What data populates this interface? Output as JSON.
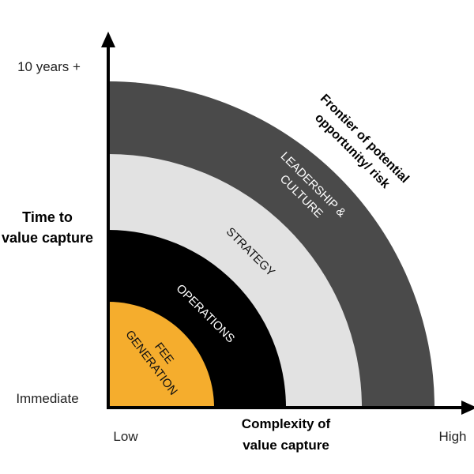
{
  "y_axis": {
    "top_label": "10 years +",
    "bottom_label": "Immediate",
    "title_line1": "Time to",
    "title_line2": "value capture"
  },
  "x_axis": {
    "left_label": "Low",
    "right_label": "High",
    "title_line1": "Complexity of",
    "title_line2": "value capture"
  },
  "rings": [
    {
      "label_line1": "FEE",
      "label_line2": "GENERATION",
      "color": "#f5ad2d",
      "text_color": "#111111"
    },
    {
      "label_line1": "OPERATIONS",
      "label_line2": "",
      "color": "#000000",
      "text_color": "#ffffff"
    },
    {
      "label_line1": "STRATEGY",
      "label_line2": "",
      "color": "#e2e2e2",
      "text_color": "#111111"
    },
    {
      "label_line1": "LEADERSHIP &",
      "label_line2": "CULTURE",
      "color": "#4a4a4a",
      "text_color": "#ffffff"
    }
  ],
  "frontier": {
    "line1": "Frontier of potential",
    "line2": "opportunity/ risk"
  }
}
